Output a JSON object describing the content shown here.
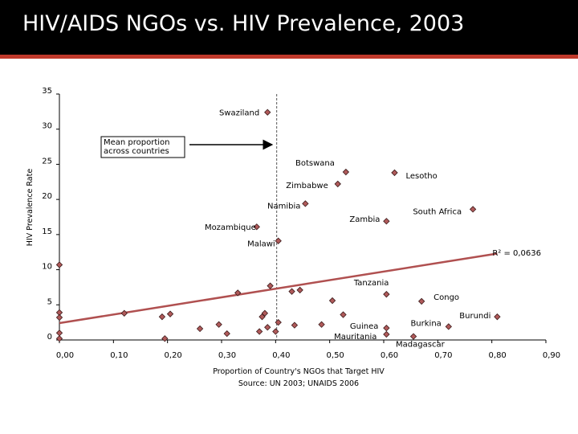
{
  "slide": {
    "title": "HIV/AIDS NGOs vs. HIV Prevalence, 2003"
  },
  "colors": {
    "title_bar": "#000000",
    "title_stripe": "#c0392b",
    "marker": "#b05a5a",
    "trendline": "#b05050"
  },
  "chart_data": {
    "type": "scatter",
    "xlabel": "Proportion of Country's NGOs that Target HIV",
    "source": "Source: UN 2003; UNAIDS 2006",
    "ylabel": "HIV Prevalence Rate",
    "xlim": [
      0,
      0.9
    ],
    "ylim": [
      0,
      35
    ],
    "x_ticks": [
      "0,00",
      "0,10",
      "0,20",
      "0,30",
      "0,40",
      "0,50",
      "0,60",
      "0,70",
      "0,80",
      "0,90"
    ],
    "y_ticks": [
      "0",
      "5",
      "10",
      "15",
      "20",
      "25",
      "30",
      "35"
    ],
    "grid": false,
    "r_squared": "R² = 0,0636",
    "trendline": {
      "x": [
        0,
        0.81
      ],
      "y": [
        2.4,
        12.3
      ]
    },
    "mean_line_x": 0.402,
    "annotation": {
      "text_lines": [
        "Mean proportion",
        "across countries"
      ]
    },
    "points": [
      {
        "x": 0.385,
        "y": 32.4,
        "label": "Swaziland"
      },
      {
        "x": 0.53,
        "y": 23.9,
        "label": "Botswana"
      },
      {
        "x": 0.515,
        "y": 22.2,
        "label": "Zimbabwe"
      },
      {
        "x": 0.62,
        "y": 23.8,
        "label": "Lesotho"
      },
      {
        "x": 0.455,
        "y": 19.4,
        "label": "Namibia"
      },
      {
        "x": 0.765,
        "y": 18.6,
        "label": "South Africa"
      },
      {
        "x": 0.605,
        "y": 16.9,
        "label": "Zambia"
      },
      {
        "x": 0.365,
        "y": 16.1,
        "label": "Mozambique"
      },
      {
        "x": 0.405,
        "y": 14.1,
        "label": "Malawi"
      },
      {
        "x": 0.605,
        "y": 6.5,
        "label": "Tanzania"
      },
      {
        "x": 0.67,
        "y": 5.5,
        "label": "Congo"
      },
      {
        "x": 0.81,
        "y": 3.3,
        "label": "Burundi"
      },
      {
        "x": 0.72,
        "y": 1.9,
        "label": "Burkina"
      },
      {
        "x": 0.605,
        "y": 1.7,
        "label": "Guinea"
      },
      {
        "x": 0.605,
        "y": 0.8,
        "label": "Mauritania"
      },
      {
        "x": 0.655,
        "y": 0.5,
        "label": "Madagascar"
      },
      {
        "x": 0.0,
        "y": 10.7,
        "label": ""
      },
      {
        "x": 0.0,
        "y": 3.9,
        "label": ""
      },
      {
        "x": 0.0,
        "y": 3.2,
        "label": ""
      },
      {
        "x": 0.0,
        "y": 1.0,
        "label": ""
      },
      {
        "x": 0.0,
        "y": 0.2,
        "label": ""
      },
      {
        "x": 0.12,
        "y": 3.8,
        "label": ""
      },
      {
        "x": 0.19,
        "y": 3.3,
        "label": ""
      },
      {
        "x": 0.195,
        "y": 0.2,
        "label": ""
      },
      {
        "x": 0.205,
        "y": 3.7,
        "label": ""
      },
      {
        "x": 0.26,
        "y": 1.6,
        "label": ""
      },
      {
        "x": 0.295,
        "y": 2.2,
        "label": ""
      },
      {
        "x": 0.31,
        "y": 0.9,
        "label": ""
      },
      {
        "x": 0.33,
        "y": 6.7,
        "label": ""
      },
      {
        "x": 0.37,
        "y": 1.2,
        "label": ""
      },
      {
        "x": 0.375,
        "y": 3.3,
        "label": ""
      },
      {
        "x": 0.38,
        "y": 3.8,
        "label": ""
      },
      {
        "x": 0.385,
        "y": 1.8,
        "label": ""
      },
      {
        "x": 0.39,
        "y": 7.7,
        "label": ""
      },
      {
        "x": 0.4,
        "y": 1.2,
        "label": ""
      },
      {
        "x": 0.405,
        "y": 2.5,
        "label": ""
      },
      {
        "x": 0.43,
        "y": 6.9,
        "label": ""
      },
      {
        "x": 0.435,
        "y": 2.1,
        "label": ""
      },
      {
        "x": 0.445,
        "y": 7.1,
        "label": ""
      },
      {
        "x": 0.485,
        "y": 2.2,
        "label": ""
      },
      {
        "x": 0.505,
        "y": 5.6,
        "label": ""
      },
      {
        "x": 0.525,
        "y": 3.6,
        "label": ""
      }
    ]
  }
}
